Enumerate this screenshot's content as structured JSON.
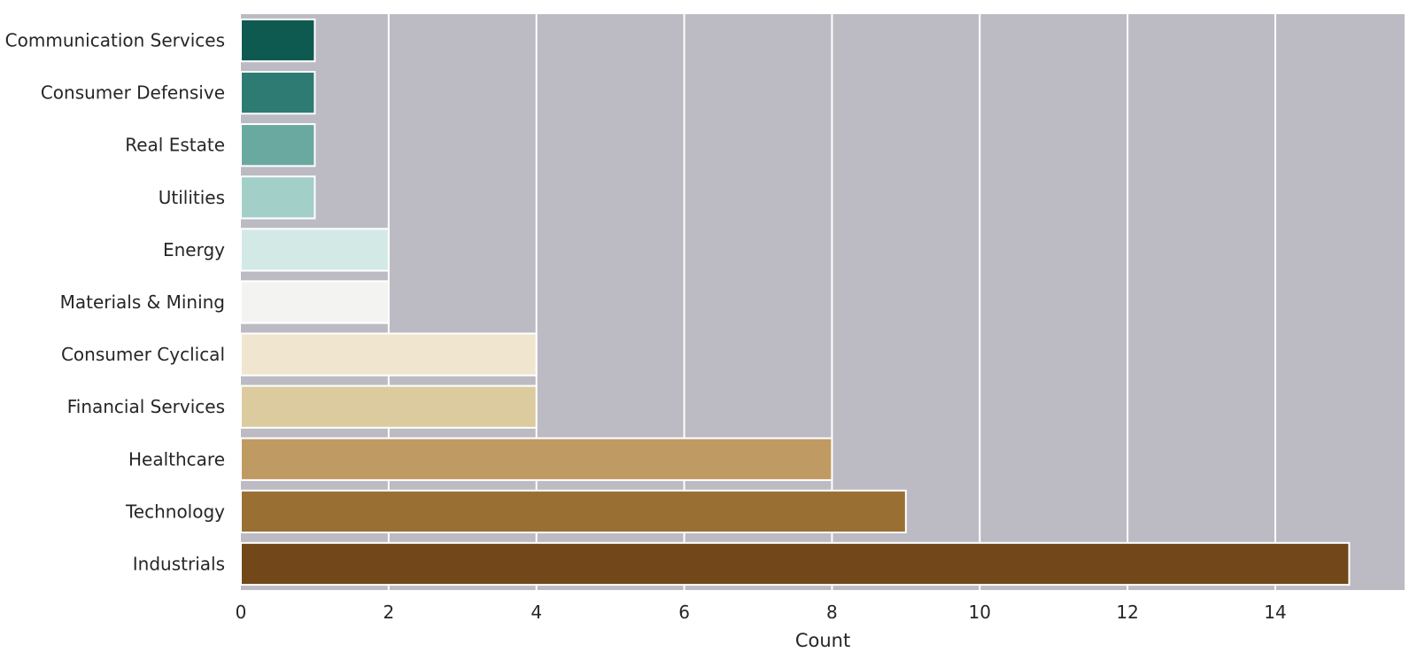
{
  "chart_data": {
    "type": "bar",
    "orientation": "horizontal",
    "categories": [
      "Communication Services",
      "Consumer Defensive",
      "Real Estate",
      "Utilities",
      "Energy",
      "Materials & Mining",
      "Consumer Cyclical",
      "Financial Services",
      "Healthcare",
      "Technology",
      "Industrials"
    ],
    "values": [
      1,
      1,
      1,
      1,
      2,
      2,
      4,
      4,
      8,
      9,
      15
    ],
    "colors": [
      "#0f5a50",
      "#2e7b73",
      "#69a9a0",
      "#a2d0c8",
      "#d3e9e6",
      "#f3f3f1",
      "#f0e6cf",
      "#dccb9e",
      "#c09a63",
      "#9a6f33",
      "#72481a"
    ],
    "xlabel": "Count",
    "ylabel": "",
    "title": "",
    "xlim": [
      0,
      15.75
    ],
    "xticks": [
      0,
      2,
      4,
      6,
      8,
      10,
      12,
      14
    ],
    "grid": "vertical",
    "plot_background": "#bcbbc3",
    "grid_color": "#ffffff"
  }
}
